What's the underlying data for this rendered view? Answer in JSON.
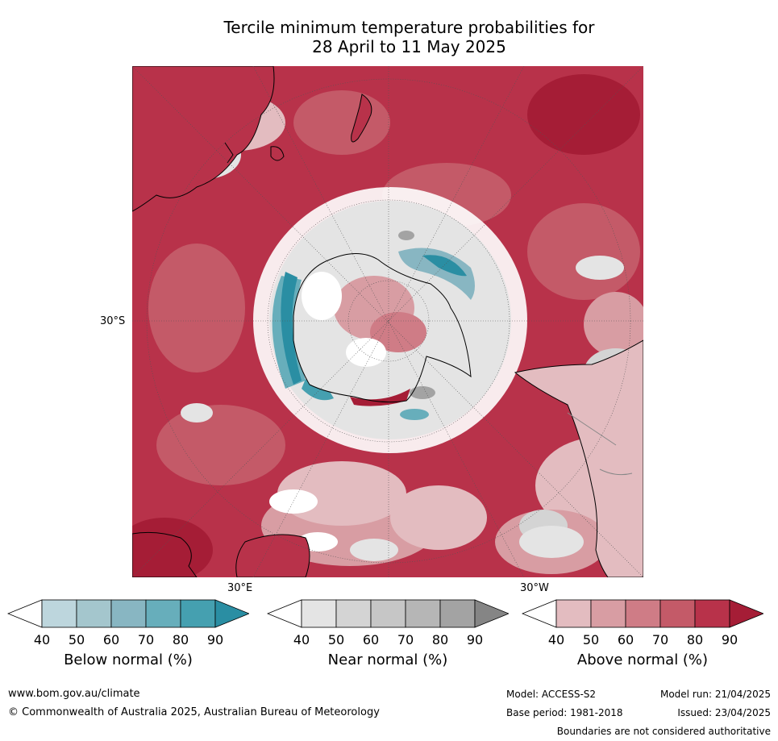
{
  "title_line1": "Tercile minimum temperature probabilities for",
  "title_line2": "28 April to 11 May 2025",
  "axis_labels": {
    "lat_30s": "30°S",
    "lon_30e": "30°E",
    "lon_30w": "30°W"
  },
  "colorbars": [
    {
      "title": "Below normal (%)",
      "ticks": [
        "40",
        "50",
        "60",
        "70",
        "80",
        "90"
      ],
      "colors": [
        "#ffffff",
        "#bdd6dd",
        "#a4c6cd",
        "#88b6c2",
        "#67aebb",
        "#45a0b0",
        "#2a8ea3"
      ]
    },
    {
      "title": "Near normal (%)",
      "ticks": [
        "40",
        "50",
        "60",
        "70",
        "80",
        "90"
      ],
      "colors": [
        "#ffffff",
        "#e4e4e4",
        "#d4d4d4",
        "#c6c6c6",
        "#b6b6b6",
        "#a3a3a3",
        "#858585"
      ]
    },
    {
      "title": "Above normal (%)",
      "ticks": [
        "40",
        "50",
        "60",
        "70",
        "80",
        "90"
      ],
      "colors": [
        "#ffffff",
        "#e3bcc0",
        "#d89da3",
        "#cf7c86",
        "#c45a68",
        "#b8324a",
        "#a51d36"
      ]
    }
  ],
  "footer": {
    "website": "www.bom.gov.au/climate",
    "copyright": "© Commonwealth of Australia 2025, Australian Bureau of Meteorology",
    "model": "Model: ACCESS-S2",
    "model_run": "Model run: 21/04/2025",
    "base_period": "Base period: 1981-2018",
    "issued": "Issued: 23/04/2025",
    "disclaimer": "Boundaries are not considered authoritative"
  }
}
